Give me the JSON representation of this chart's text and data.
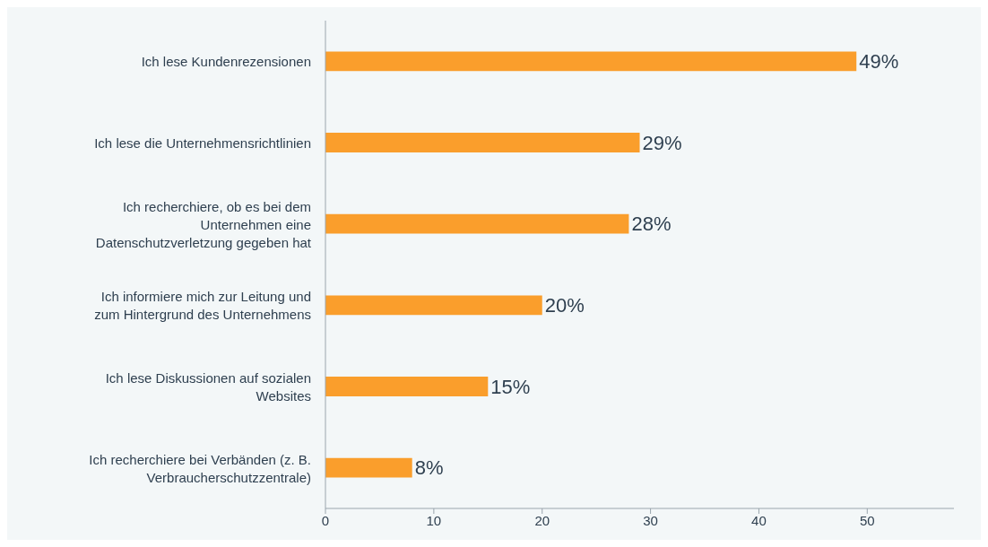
{
  "chart_data": {
    "type": "bar",
    "orientation": "horizontal",
    "categories": [
      "Ich lese Kundenrezensionen",
      "Ich lese die Unternehmensrichtlinien",
      "Ich recherchiere, ob es bei dem Unternehmen eine Datenschutzverletzung gegeben hat",
      "Ich informiere mich zur Leitung und zum Hintergrund des Unternehmens",
      "Ich lese Diskussionen auf sozialen Websites",
      "Ich recherchiere bei Verbänden (z. B. Verbraucherschutzzentrale)"
    ],
    "values": [
      49,
      29,
      28,
      20,
      15,
      8
    ],
    "value_labels": [
      "49%",
      "29%",
      "28%",
      "20%",
      "15%",
      "8%"
    ],
    "color": "#fa9e2c",
    "xlim": [
      0,
      58
    ],
    "xticks": [
      0,
      10,
      20,
      30,
      40,
      50
    ],
    "grid": false,
    "legend": false
  }
}
